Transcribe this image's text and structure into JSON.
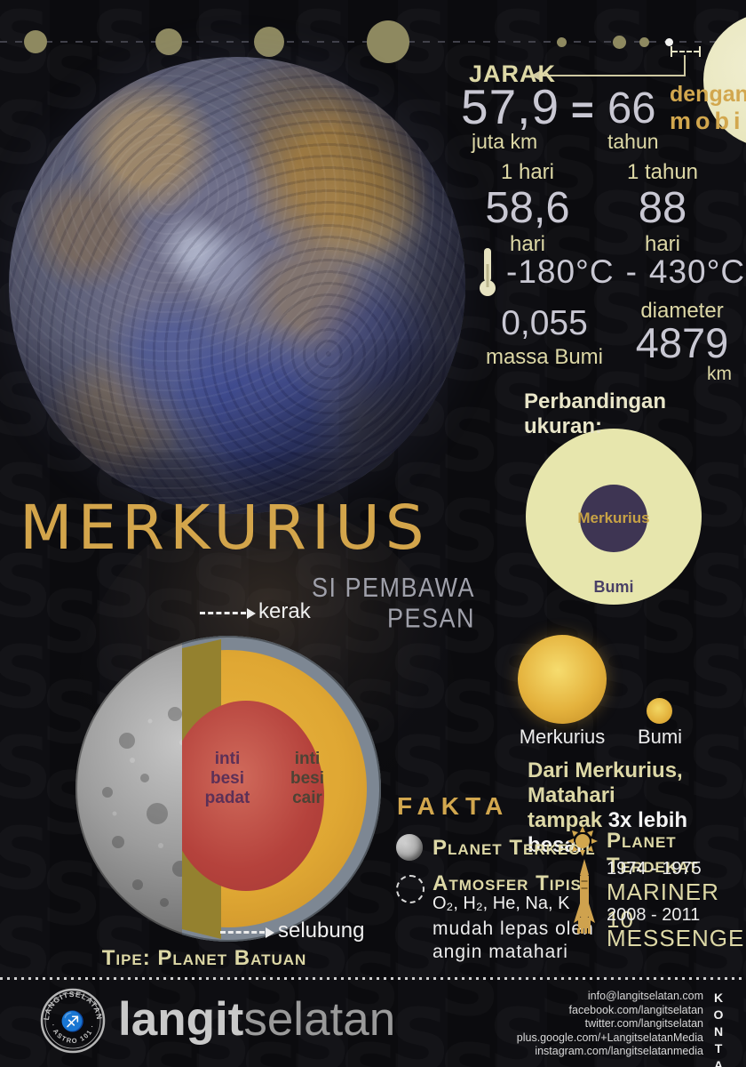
{
  "colors": {
    "accent_gold": "#d2a74e",
    "cream": "#ddd8a6",
    "number_gray": "#c9c8d3",
    "background": "#0b0b0e",
    "sun_yellow": "#e4b23d",
    "earth_pale": "#e7e6ad",
    "mercury_purple": "#3e3553",
    "core_red": "#b5423c",
    "mantle_gold": "#dfa733",
    "shell_gray": "#7d8793"
  },
  "watermark_letter": "S",
  "distance": {
    "label": "JARAK",
    "value": "57,9",
    "unit": "juta km",
    "equals": "=",
    "car_value": "66",
    "car_unit": "tahun",
    "by_line1": "dengan",
    "by_line2": "mobil"
  },
  "rotation": {
    "label": "1 hari",
    "value": "58,6",
    "unit": "hari"
  },
  "revolution": {
    "label": "1 tahun",
    "value": "88",
    "unit": "hari"
  },
  "temperature": {
    "min": "-180°C",
    "dash": "-",
    "max": "430°C"
  },
  "mass": {
    "value": "0,055",
    "label": "massa Bumi"
  },
  "diameter": {
    "label": "diameter",
    "value": "4879",
    "unit": "km"
  },
  "title": {
    "main": "MERKURIUS",
    "subtitle": "SI PEMBAWA PESAN"
  },
  "size_comparison": {
    "heading": "Perbandingan ukuran:",
    "outer_label": "Bumi",
    "inner_label": "Merkurius"
  },
  "sun_view": {
    "big_label": "Merkurius",
    "small_label": "Bumi",
    "caption_line1": "Dari Merkurius, Matahari",
    "caption_prefix": "tampak ",
    "caption_bold": "3x lebih besar"
  },
  "structure": {
    "crust_label": "kerak",
    "mantle_label": "selubung",
    "inner_core_label": "inti\nbesi\npadat",
    "outer_core_label": "inti\nbesi\ncair",
    "type_label": "Tipe: Planet Batuan"
  },
  "facts": {
    "heading": "FAKTA",
    "smallest_label": "Planet Terkecil",
    "atmosphere_label": "Atmosfer Tipis",
    "atmosphere_elements": "O₂, H₂, He, Na, K",
    "atmosphere_note": "mudah lepas oleh\nangin matahari",
    "closest_label": "Planet Terdekat",
    "missions": [
      {
        "years": "1974 - 1975",
        "name": "MARINER 10"
      },
      {
        "years": "2008 - 2011",
        "name": "MESSENGER"
      }
    ]
  },
  "footer": {
    "brand_bold": "langit",
    "brand_light": "selatan",
    "badge_top": "LANGITSELATAN",
    "badge_bottom": "· ASTRO 101 ·",
    "contacts": [
      "info@langitselatan.com",
      "facebook.com/langitselatan",
      "twitter.com/langitselatan",
      "plus.google.com/+LangitselatanMedia",
      "instagram.com/langitselatanmedia"
    ],
    "kontak_label": "KONTAK"
  }
}
